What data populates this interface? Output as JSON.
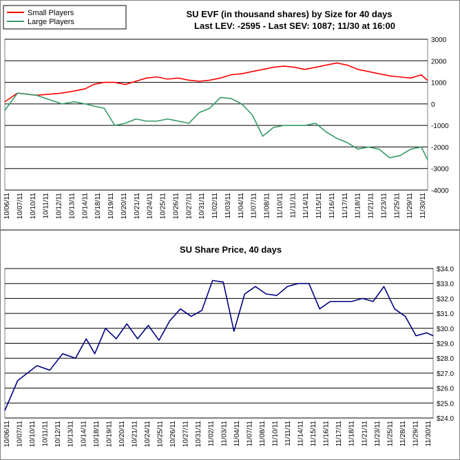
{
  "colors": {
    "small_players": "#ff0000",
    "large_players": "#339966",
    "price": "#000080",
    "gridline": "#000000",
    "border": "#808080"
  },
  "chart_data": [
    {
      "type": "line",
      "title": "SU EVF (in thousand shares) by Size for 40 days",
      "subtitle": "Last LEV: -2595 - Last SEV: 1087; 11/30 at 16:00",
      "ylim": [
        -4000,
        3000
      ],
      "yticks": [
        "-4000",
        "-3000",
        "-2000",
        "-1000",
        "0",
        "1000",
        "2000",
        "3000"
      ],
      "ytick_values": [
        -4000,
        -3000,
        -2000,
        -1000,
        0,
        1000,
        2000,
        3000
      ],
      "grid": "horizontal",
      "legend_position": "top-left",
      "categories": [
        "10/06/11",
        "10/07/11",
        "10/10/11",
        "10/11/11",
        "10/12/11",
        "10/13/11",
        "10/14/11",
        "10/18/11",
        "10/19/11",
        "10/20/11",
        "10/21/11",
        "10/24/11",
        "10/25/11",
        "10/26/11",
        "10/27/11",
        "10/31/11",
        "11/02/11",
        "11/03/11",
        "11/04/11",
        "11/07/11",
        "11/08/11",
        "11/10/11",
        "11/11/11",
        "11/14/11",
        "11/15/11",
        "11/16/11",
        "11/17/11",
        "11/18/11",
        "11/21/11",
        "11/23/11",
        "11/25/11",
        "11/29/11",
        "11/30/11"
      ],
      "x": [
        0,
        1.2,
        3,
        4.2,
        5.4,
        6.6,
        7.6,
        8.4,
        9.4,
        10.4,
        11.4,
        12.4,
        13.4,
        14.4,
        15.4,
        16.4,
        17.4,
        18.4,
        19.4,
        20.4,
        21.4,
        22.4,
        23.4,
        24.4,
        25.4,
        26.4,
        27.4,
        28.4,
        29.4,
        30.4,
        31.4,
        32.4,
        33.4,
        34.4,
        35.4,
        36.4,
        37.4,
        38.4,
        39.4,
        40
      ],
      "series": [
        {
          "name": "Small Players",
          "values": [
            100,
            500,
            400,
            450,
            500,
            600,
            700,
            900,
            1000,
            1000,
            900,
            1050,
            1200,
            1250,
            1150,
            1200,
            1100,
            1050,
            1100,
            1200,
            1350,
            1400,
            1500,
            1600,
            1700,
            1750,
            1700,
            1600,
            1700,
            1800,
            1900,
            1800,
            1600,
            1500,
            1400,
            1300,
            1250,
            1200,
            1350,
            1087
          ]
        },
        {
          "name": "Large Players",
          "values": [
            -300,
            500,
            400,
            200,
            0,
            100,
            0,
            -100,
            -200,
            -1000,
            -900,
            -700,
            -800,
            -800,
            -700,
            -800,
            -900,
            -400,
            -200,
            300,
            250,
            0,
            -500,
            -1500,
            -1100,
            -1000,
            -1000,
            -1000,
            -900,
            -1300,
            -1600,
            -1800,
            -2100,
            -2000,
            -2100,
            -2500,
            -2400,
            -2100,
            -2000,
            -2595
          ]
        }
      ]
    },
    {
      "type": "line",
      "title": "SU Share Price, 40 days",
      "ylim": [
        24,
        34
      ],
      "yticks": [
        "$24.0",
        "$25.0",
        "$26.0",
        "$27.0",
        "$28.0",
        "$29.0",
        "$30.0",
        "$31.0",
        "$32.0",
        "$33.0",
        "$34.0"
      ],
      "ytick_values": [
        24,
        25,
        26,
        27,
        28,
        29,
        30,
        31,
        32,
        33,
        34
      ],
      "grid": "horizontal",
      "categories": [
        "10/06/11",
        "10/07/11",
        "10/10/11",
        "10/11/11",
        "10/12/11",
        "10/13/11",
        "10/14/11",
        "10/18/11",
        "10/19/11",
        "10/20/11",
        "10/21/11",
        "10/24/11",
        "10/25/11",
        "10/26/11",
        "10/27/11",
        "10/31/11",
        "11/02/11",
        "11/03/11",
        "11/04/11",
        "11/07/11",
        "11/08/11",
        "11/10/11",
        "11/11/11",
        "11/14/11",
        "11/15/11",
        "11/16/11",
        "11/17/11",
        "11/18/11",
        "11/21/11",
        "11/23/11",
        "11/25/11",
        "11/28/11",
        "11/29/11",
        "11/30/11"
      ],
      "x": [
        0,
        1.2,
        3,
        4.2,
        5.4,
        6.6,
        7.6,
        8.4,
        9.4,
        10.4,
        11.4,
        12.4,
        13.4,
        14.4,
        15.4,
        16.4,
        17.4,
        18.4,
        19.4,
        20.4,
        21.4,
        22.4,
        23.4,
        24.4,
        25.4,
        26.4,
        27.4,
        28.4,
        29.4,
        30.4,
        31.4,
        32.4,
        33.4,
        34.4,
        35.4,
        36.4,
        37.4,
        38.4,
        39.4,
        40
      ],
      "series": [
        {
          "name": "",
          "values": [
            24.5,
            26.5,
            27.5,
            27.2,
            28.3,
            28.0,
            29.3,
            28.3,
            30.0,
            29.3,
            30.3,
            29.3,
            30.2,
            29.2,
            30.5,
            31.3,
            30.8,
            31.2,
            33.2,
            33.1,
            29.8,
            32.3,
            32.8,
            32.3,
            32.2,
            32.8,
            33.0,
            33.0,
            31.3,
            31.8,
            31.8,
            31.8,
            32.0,
            31.8,
            32.8,
            31.3,
            30.8,
            29.5,
            29.7,
            29.5
          ]
        }
      ]
    }
  ]
}
